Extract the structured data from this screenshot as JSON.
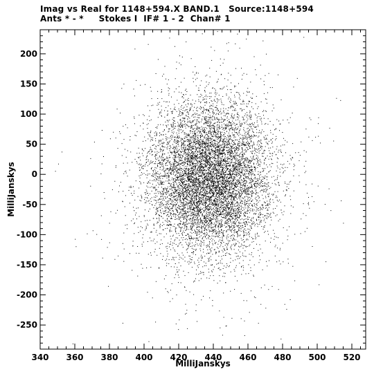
{
  "chart_data": {
    "type": "scatter",
    "title_line1": "Imag vs Real for 1148+594.X BAND.1   Source:1148+594",
    "title_line2": "Ants * - *     Stokes I  IF# 1 - 2  Chan# 1",
    "xlabel": "MilliJanskys",
    "ylabel": "MilliJanskys",
    "xlim": [
      340,
      528
    ],
    "ylim": [
      -290,
      240
    ],
    "x_ticks": [
      340,
      360,
      380,
      400,
      420,
      440,
      460,
      480,
      500,
      520
    ],
    "y_ticks": [
      200,
      150,
      100,
      50,
      0,
      -50,
      -100,
      -150,
      -200,
      -250
    ],
    "cloud": {
      "center_x": 437,
      "center_y": -5,
      "sigma_x": 17,
      "sigma_y": 62,
      "n_points": 9000
    },
    "point_color": "#000000"
  }
}
